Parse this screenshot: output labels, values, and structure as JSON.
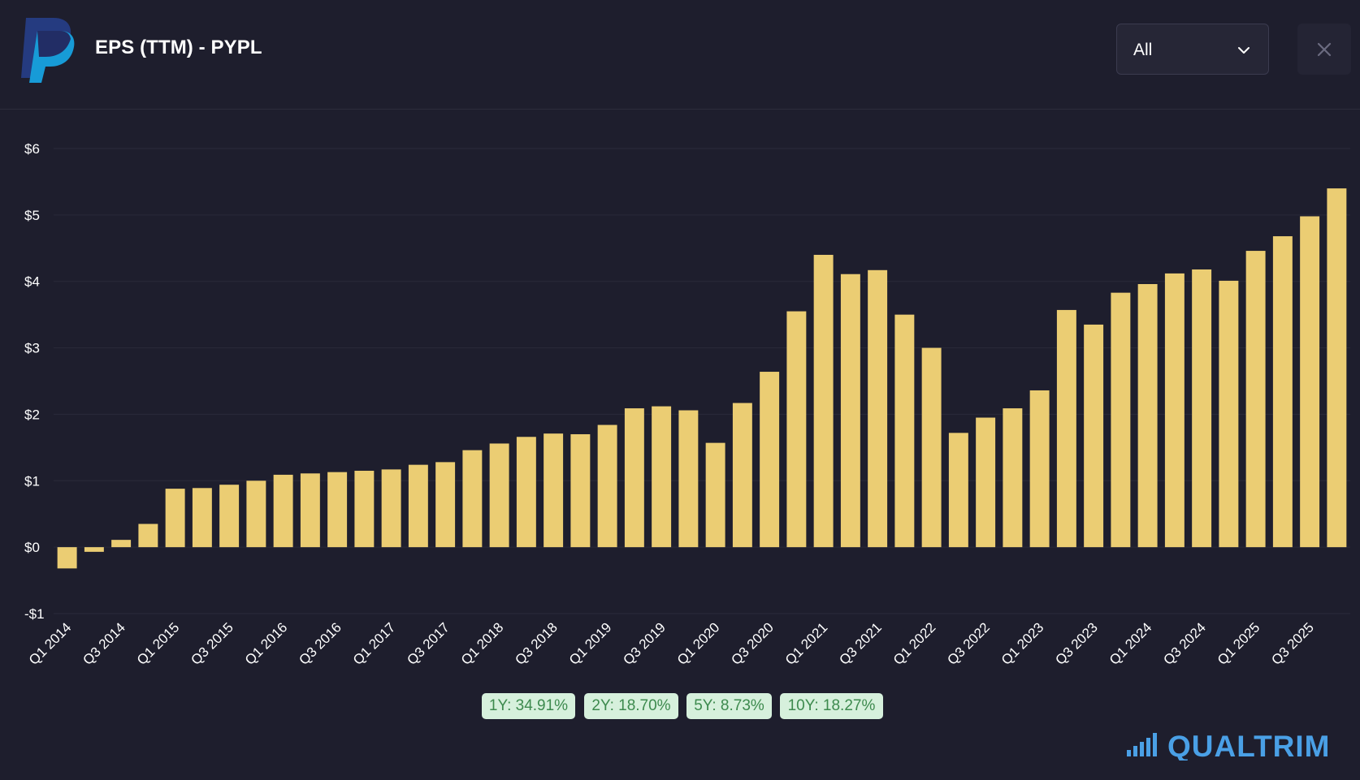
{
  "header": {
    "title": "EPS (TTM) - PYPL",
    "logo_icon": "paypal-logo",
    "range_select": {
      "value": "All"
    },
    "close_icon": "close-icon"
  },
  "colors": {
    "background": "#1e1e2d",
    "bar": "#ebcd73",
    "grid": "#2a2a3a",
    "axis_text": "#ffffff",
    "badge_bg": "#d6f0dc",
    "badge_text": "#3d8a4e",
    "brand": "#4aa0e6"
  },
  "chart_data": {
    "type": "bar",
    "title": "",
    "xlabel": "",
    "ylabel": "",
    "ylim": [
      -1,
      6
    ],
    "y_ticks": [
      {
        "value": -1,
        "label": "-$1"
      },
      {
        "value": 0,
        "label": "$0"
      },
      {
        "value": 1,
        "label": "$1"
      },
      {
        "value": 2,
        "label": "$2"
      },
      {
        "value": 3,
        "label": "$3"
      },
      {
        "value": 4,
        "label": "$4"
      },
      {
        "value": 5,
        "label": "$5"
      },
      {
        "value": 6,
        "label": "$6"
      }
    ],
    "grid": true,
    "categories": [
      "Q1 2014",
      "Q2 2014",
      "Q3 2014",
      "Q4 2014",
      "Q1 2015",
      "Q2 2015",
      "Q3 2015",
      "Q4 2015",
      "Q1 2016",
      "Q2 2016",
      "Q3 2016",
      "Q4 2016",
      "Q1 2017",
      "Q2 2017",
      "Q3 2017",
      "Q4 2017",
      "Q1 2018",
      "Q2 2018",
      "Q3 2018",
      "Q4 2018",
      "Q1 2019",
      "Q2 2019",
      "Q3 2019",
      "Q4 2019",
      "Q1 2020",
      "Q2 2020",
      "Q3 2020",
      "Q4 2020",
      "Q1 2021",
      "Q2 2021",
      "Q3 2021",
      "Q4 2021",
      "Q1 2022",
      "Q2 2022",
      "Q3 2022",
      "Q4 2022",
      "Q1 2023",
      "Q2 2023",
      "Q3 2023",
      "Q4 2023",
      "Q1 2024",
      "Q2 2024",
      "Q3 2024",
      "Q4 2024",
      "Q1 2025",
      "Q2 2025",
      "Q3 2025",
      "Q4 2025"
    ],
    "tick_labels": [
      "Q1 2014",
      "Q3 2014",
      "Q1 2015",
      "Q3 2015",
      "Q1 2016",
      "Q3 2016",
      "Q1 2017",
      "Q3 2017",
      "Q1 2018",
      "Q3 2018",
      "Q1 2019",
      "Q3 2019",
      "Q1 2020",
      "Q3 2020",
      "Q1 2021",
      "Q3 2021",
      "Q1 2022",
      "Q3 2022",
      "Q1 2023",
      "Q3 2023",
      "Q1 2024",
      "Q3 2024",
      "Q1 2025",
      "Q3 2025"
    ],
    "values": [
      -0.32,
      -0.07,
      0.11,
      0.35,
      0.88,
      0.89,
      0.94,
      1.0,
      1.09,
      1.11,
      1.13,
      1.15,
      1.17,
      1.24,
      1.28,
      1.46,
      1.56,
      1.66,
      1.71,
      1.7,
      1.84,
      2.09,
      2.12,
      2.06,
      1.57,
      2.17,
      2.64,
      3.55,
      4.4,
      4.11,
      4.17,
      3.5,
      3.0,
      1.72,
      1.95,
      2.09,
      2.36,
      3.57,
      3.35,
      3.83,
      3.96,
      4.12,
      4.18,
      4.01,
      4.46,
      4.68,
      4.98,
      5.4
    ]
  },
  "growth_badges": [
    {
      "label": "1Y: 34.91%"
    },
    {
      "label": "2Y: 18.70%"
    },
    {
      "label": "5Y: 8.73%"
    },
    {
      "label": "10Y: 18.27%"
    }
  ],
  "brand": {
    "name": "QUALTRIM",
    "icon": "signal-bars-icon"
  }
}
